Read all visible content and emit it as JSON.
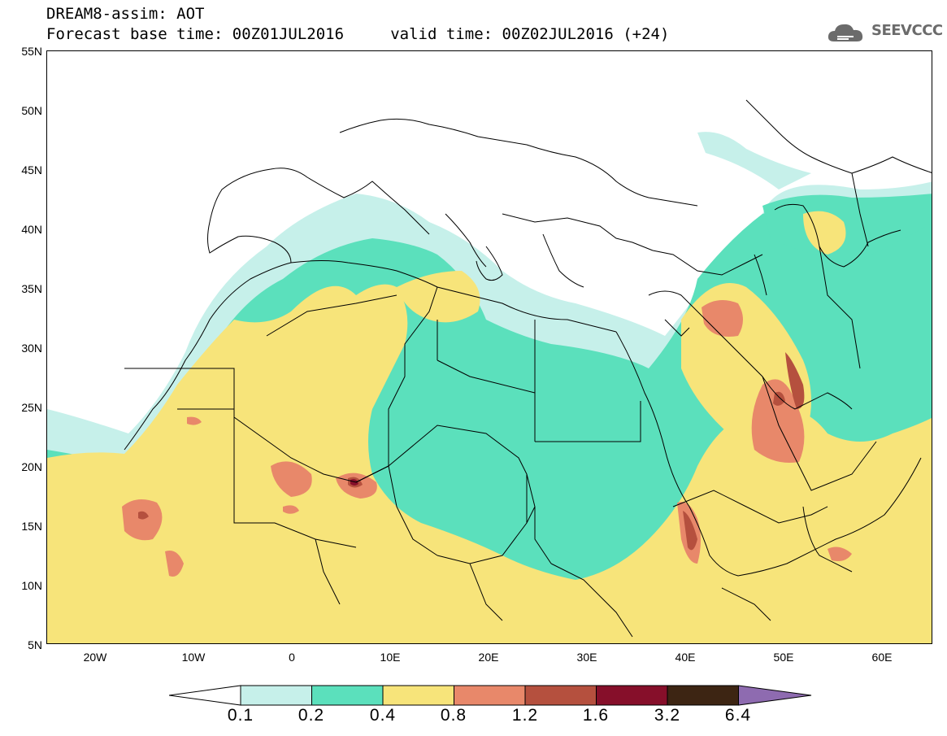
{
  "header": {
    "line1": "DREAM8-assim: AOT",
    "line2": "Forecast base time: 00Z01JUL2016     valid time: 00Z02JUL2016 (+24)"
  },
  "brand": {
    "text": "SEEVCCC",
    "icon": "cloud-icon",
    "color": "#6b6b6b"
  },
  "map": {
    "variable": "AOT",
    "lat_range": [
      5,
      55
    ],
    "lon_range": [
      -25,
      65
    ],
    "lat_labels": [
      "55N",
      "50N",
      "45N",
      "40N",
      "35N",
      "30N",
      "25N",
      "20N",
      "15N",
      "10N",
      "5N"
    ],
    "lon_labels": [
      "20W",
      "10W",
      "0",
      "10E",
      "20E",
      "30E",
      "40E",
      "50E",
      "60E"
    ],
    "background": "#ffffff",
    "coastline_color": "#000000"
  },
  "colorbar": {
    "levels": [
      "0.1",
      "0.2",
      "0.4",
      "0.8",
      "1.2",
      "1.6",
      "3.2",
      "6.4"
    ],
    "colors": [
      "#c6f0ea",
      "#5be0bc",
      "#f7e47a",
      "#e8886a",
      "#b5503e",
      "#860f2a",
      "#3d2513",
      "#8e6bb0"
    ],
    "under_color": "#ffffff",
    "over_color": "#8e6bb0"
  }
}
